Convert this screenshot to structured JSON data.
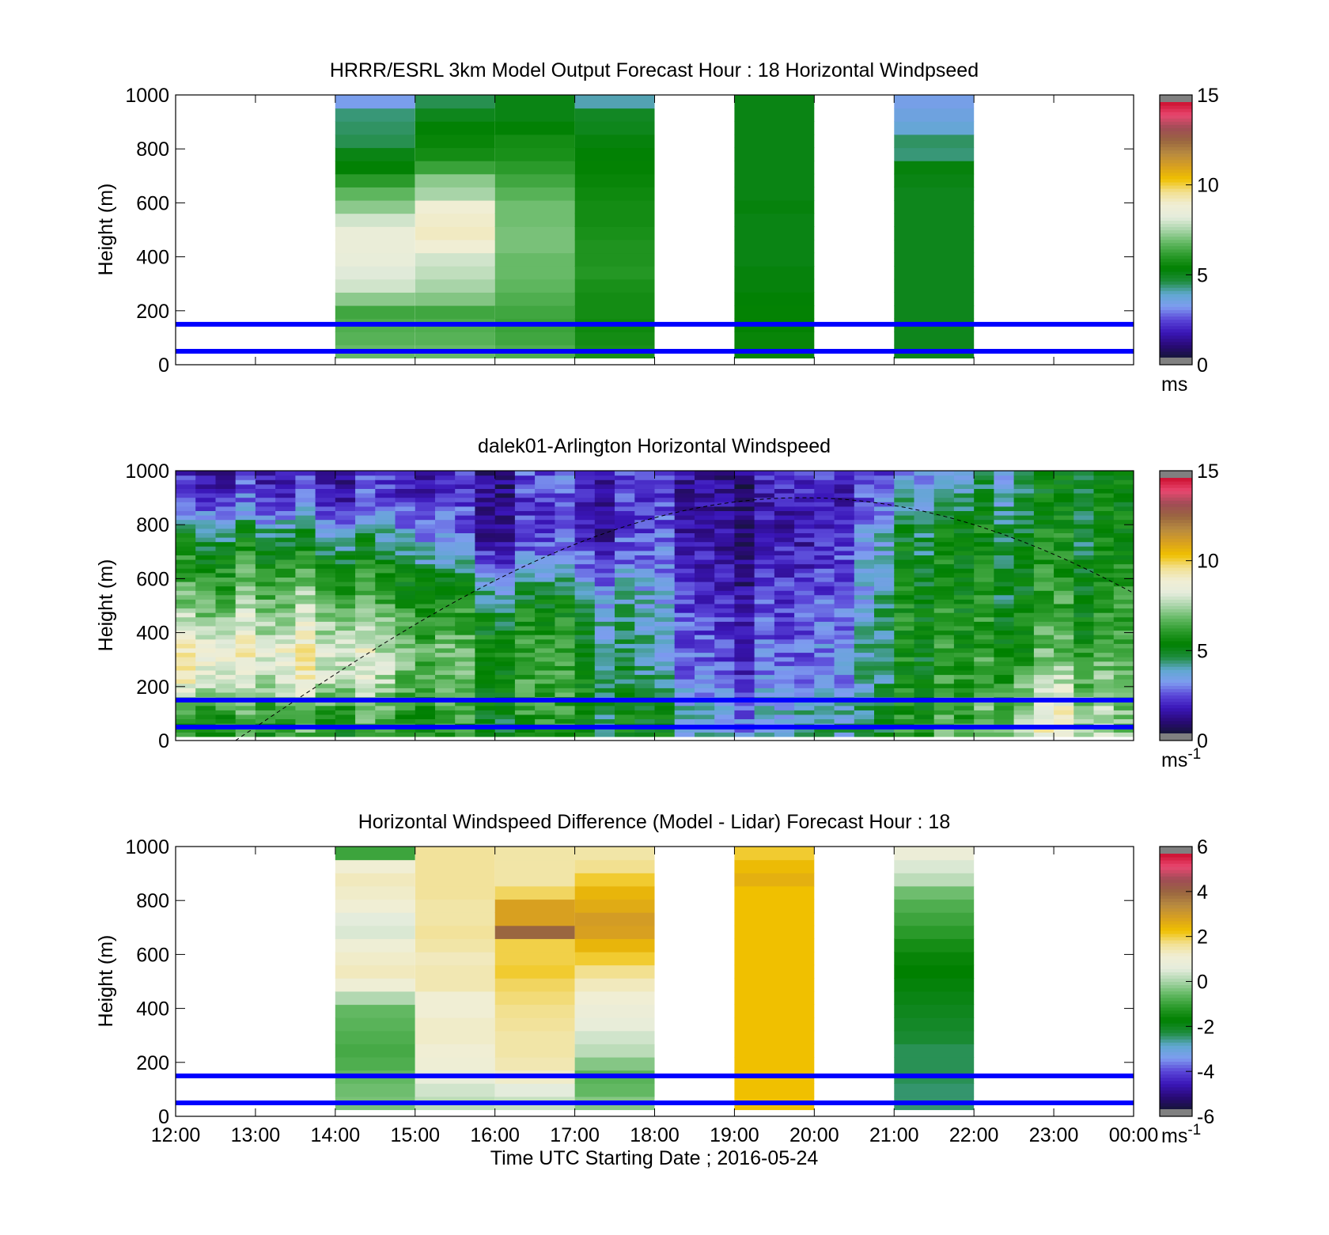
{
  "figure": {
    "xlabel": "Time UTC  Starting Date ; 2016-05-24",
    "x_ticks": [
      "12:00",
      "13:00",
      "14:00",
      "15:00",
      "16:00",
      "17:00",
      "18:00",
      "19:00",
      "20:00",
      "21:00",
      "22:00",
      "23:00",
      "00:00"
    ],
    "y_ticks": [
      "0",
      "200",
      "400",
      "600",
      "800",
      "1000"
    ],
    "ylabel": "Height (m)",
    "reference_lines_m": [
      50,
      150
    ],
    "reference_line_color": "#0000ff"
  },
  "chart_data": [
    {
      "type": "heatmap",
      "title": "HRRR/ESRL 3km Model Output   Forecast Hour : 18 Horizontal Windpseed",
      "ylabel": "Height (m)",
      "xlim_hours": [
        12,
        24
      ],
      "ylim": [
        0,
        1000
      ],
      "color_range": [
        0,
        15
      ],
      "colorbar_ticks": [
        "0",
        "5",
        "10",
        "15"
      ],
      "colorbar_unit": "ms",
      "colorbar_unit_sup": "",
      "columns": [
        {
          "hour": 14,
          "values": [
            6.8,
            6.6,
            6.5,
            6.3,
            7.2,
            8.0,
            8.2,
            8.5,
            8.6,
            8.6,
            8.0,
            7.2,
            6.7,
            6.0,
            5.2,
            5.0,
            4.4,
            4.3,
            4.2,
            3.1
          ]
        },
        {
          "hour": 15,
          "values": [
            6.8,
            6.6,
            6.5,
            6.3,
            7.1,
            7.5,
            7.8,
            8.0,
            9.0,
            9.2,
            9.1,
            9.0,
            7.5,
            7.2,
            6.2,
            5.6,
            5.4,
            5.2,
            4.9,
            4.4
          ]
        },
        {
          "hour": 16,
          "values": [
            6.5,
            6.3,
            6.2,
            6.3,
            6.5,
            6.7,
            6.8,
            6.8,
            7.0,
            7.0,
            6.9,
            6.9,
            6.6,
            6.3,
            6.0,
            5.7,
            5.6,
            5.2,
            5.0,
            5.0
          ]
        },
        {
          "hour": 17,
          "values": [
            5.7,
            5.6,
            5.5,
            5.6,
            5.6,
            5.7,
            5.9,
            5.8,
            5.8,
            5.7,
            5.6,
            5.6,
            5.5,
            5.4,
            5.3,
            5.2,
            5.1,
            4.9,
            4.8,
            3.9
          ]
        },
        {
          "hour": 19,
          "values": [
            5.4,
            5.4,
            5.3,
            5.3,
            5.2,
            5.1,
            5.1,
            5.0,
            5.0,
            5.0,
            5.0,
            5.1,
            5.0,
            5.0,
            5.0,
            5.0,
            5.0,
            5.0,
            5.0,
            5.0
          ]
        },
        {
          "hour": 21,
          "values": [
            4.9,
            4.9,
            4.9,
            4.9,
            4.9,
            4.9,
            4.9,
            4.9,
            4.9,
            4.9,
            4.9,
            4.9,
            4.9,
            5.0,
            5.1,
            4.2,
            4.3,
            3.6,
            3.4,
            3.2
          ]
        }
      ]
    },
    {
      "type": "heatmap",
      "title": "dalek01-Arlington  Horizontal Windspeed",
      "ylabel": "Height (m)",
      "xlim_hours": [
        12,
        24
      ],
      "ylim": [
        0,
        1000
      ],
      "color_range": [
        0,
        15
      ],
      "colorbar_ticks": [
        "0",
        "5",
        "10",
        "15"
      ],
      "colorbar_unit": "ms",
      "colorbar_unit_sup": "-1",
      "curve_description": "dashed black arc",
      "profile_points": [
        {
          "hour": 12.0,
          "values": [
            6.0,
            6.3,
            9.2,
            9.5,
            8.0,
            6.6,
            6.0,
            4.8,
            2.5,
            2.0
          ]
        },
        {
          "hour": 13.0,
          "values": [
            5.8,
            6.5,
            8.2,
            8.8,
            8.0,
            6.8,
            5.8,
            4.5,
            2.4,
            1.8
          ]
        },
        {
          "hour": 14.0,
          "values": [
            5.9,
            6.6,
            8.5,
            8.9,
            7.6,
            6.6,
            5.6,
            4.0,
            2.2,
            1.6
          ]
        },
        {
          "hour": 15.0,
          "values": [
            5.5,
            6.0,
            6.6,
            6.7,
            6.2,
            5.6,
            4.4,
            3.1,
            2.0,
            1.5
          ]
        },
        {
          "hour": 16.0,
          "values": [
            5.2,
            5.6,
            5.9,
            5.9,
            5.4,
            4.2,
            2.4,
            1.4,
            1.4,
            1.6
          ]
        },
        {
          "hour": 17.0,
          "values": [
            5.0,
            5.4,
            5.6,
            5.5,
            5.0,
            4.1,
            2.5,
            1.7,
            1.8,
            2.0
          ]
        },
        {
          "hour": 18.0,
          "values": [
            4.7,
            4.5,
            3.4,
            3.2,
            3.1,
            2.8,
            2.2,
            1.8,
            1.6,
            1.7
          ]
        },
        {
          "hour": 19.0,
          "values": [
            3.6,
            3.4,
            2.6,
            2.3,
            2.1,
            1.9,
            1.6,
            1.4,
            1.3,
            1.3
          ]
        },
        {
          "hour": 20.0,
          "values": [
            3.3,
            3.2,
            2.4,
            2.1,
            1.8,
            1.4,
            1.2,
            1.0,
            1.1,
            1.5
          ]
        },
        {
          "hour": 21.0,
          "values": [
            5.8,
            5.6,
            5.2,
            5.3,
            5.3,
            5.1,
            4.9,
            4.6,
            3.5,
            2.6
          ]
        },
        {
          "hour": 22.0,
          "values": [
            6.3,
            6.0,
            5.8,
            5.6,
            5.4,
            5.1,
            5.0,
            4.9,
            4.4,
            3.6
          ]
        },
        {
          "hour": 23.0,
          "values": [
            8.6,
            8.5,
            7.4,
            6.2,
            5.8,
            5.5,
            5.1,
            4.9,
            4.7,
            4.4
          ]
        },
        {
          "hour": 24.0,
          "values": [
            6.3,
            6.3,
            6.1,
            5.9,
            5.6,
            5.3,
            5.0,
            4.9,
            4.8,
            4.7
          ]
        }
      ]
    },
    {
      "type": "heatmap",
      "title": "Horizontal Windspeed Difference (Model - Lidar) Forecast Hour : 18",
      "ylabel": "Height (m)",
      "xlabel": "Time UTC  Starting Date ; 2016-05-24",
      "xlim_hours": [
        12,
        24
      ],
      "ylim": [
        0,
        1000
      ],
      "color_range": [
        -6,
        6
      ],
      "colorbar_ticks": [
        "-6",
        "-4",
        "-2",
        "0",
        "2",
        "4",
        "6"
      ],
      "colorbar_unit": "ms",
      "colorbar_unit_sup": "-1",
      "columns": [
        {
          "hour": 14,
          "values": [
            -0.4,
            -0.5,
            -0.6,
            -0.8,
            -0.9,
            -0.8,
            -0.7,
            -0.6,
            0.1,
            1.1,
            1.4,
            1.3,
            1.1,
            0.5,
            0.6,
            1.2,
            1.3,
            1.4,
            1.2,
            -1.0
          ]
        },
        {
          "hour": 15,
          "values": [
            0.2,
            0.4,
            0.8,
            1.1,
            1.2,
            1.3,
            1.3,
            1.2,
            1.2,
            1.5,
            1.5,
            1.4,
            1.6,
            1.7,
            1.6,
            1.6,
            1.7,
            1.7,
            1.7,
            1.7
          ]
        },
        {
          "hour": 16,
          "values": [
            0.3,
            0.6,
            1.3,
            1.5,
            1.6,
            1.6,
            1.7,
            1.8,
            1.9,
            2.0,
            2.2,
            2.1,
            2.1,
            4.2,
            3.0,
            3.0,
            2.0,
            1.6,
            1.6,
            1.6
          ]
        },
        {
          "hour": 17,
          "values": [
            -0.3,
            -0.6,
            -0.7,
            -0.3,
            0.2,
            0.4,
            0.8,
            1.0,
            1.2,
            1.4,
            1.8,
            2.2,
            2.6,
            3.0,
            3.1,
            2.8,
            2.6,
            2.2,
            1.8,
            1.6
          ]
        },
        {
          "hour": 19,
          "values": [
            2.4,
            2.4,
            2.4,
            2.4,
            2.4,
            2.4,
            2.4,
            2.4,
            2.4,
            2.4,
            2.4,
            2.4,
            2.4,
            2.4,
            2.4,
            2.4,
            2.4,
            2.7,
            2.5,
            2.2
          ]
        },
        {
          "hour": 21,
          "values": [
            -2.6,
            -2.6,
            -2.5,
            -2.5,
            -2.5,
            -2.3,
            -2.2,
            -2.1,
            -2.0,
            -1.9,
            -1.8,
            -1.7,
            -1.5,
            -1.2,
            -1.0,
            -0.8,
            -0.5,
            0.2,
            0.5,
            1.0
          ]
        }
      ]
    }
  ],
  "colormap_colors": [
    "#808080",
    "#151538",
    "#2a0a78",
    "#3a16b8",
    "#5a46d8",
    "#7e9cf0",
    "#60a8d0",
    "#1e8c3c",
    "#008000",
    "#2a9a2a",
    "#62b862",
    "#a8d4a8",
    "#e4ecdc",
    "#f0eed4",
    "#f2e090",
    "#f0c000",
    "#d8a020",
    "#b88a40",
    "#9a6640",
    "#a04c56",
    "#e84870",
    "#cc1030",
    "#808080"
  ]
}
